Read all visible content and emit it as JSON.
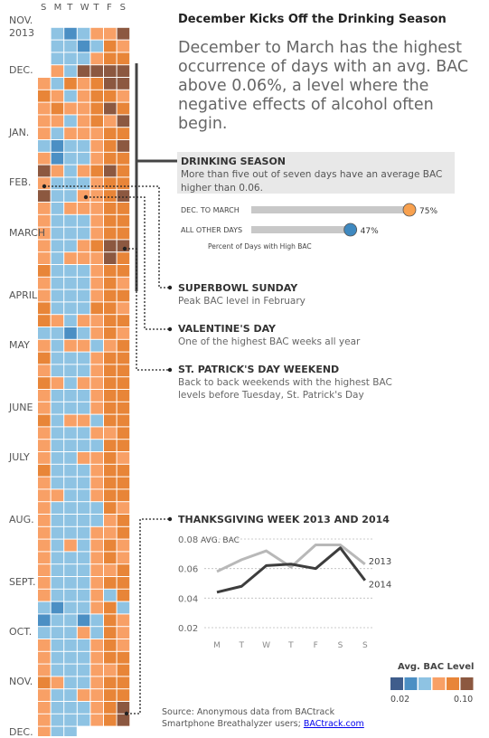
{
  "title": "December Kicks Off the Drinking Season",
  "subtitle": "December to March has the highest occurrence of days with an avg. BAC above 0.06%, a level where the negative effects of alcohol often begin.",
  "calendar": {
    "weekday_headers": [
      "S",
      "M",
      "T",
      "W",
      "T",
      "F",
      "S"
    ],
    "month_labels": [
      {
        "label": "NOV.",
        "row": 0
      },
      {
        "label": "2013",
        "row": 1
      },
      {
        "label": "DEC.",
        "row": 4
      },
      {
        "label": "JAN.",
        "row": 9
      },
      {
        "label": "FEB.",
        "row": 13
      },
      {
        "label": "MARCH",
        "row": 17
      },
      {
        "label": "APRIL",
        "row": 22
      },
      {
        "label": "MAY",
        "row": 26
      },
      {
        "label": "JUNE",
        "row": 31
      },
      {
        "label": "JULY",
        "row": 35
      },
      {
        "label": "AUG.",
        "row": 40
      },
      {
        "label": "SEPT.",
        "row": 45
      },
      {
        "label": "OCT.",
        "row": 49
      },
      {
        "label": "NOV.",
        "row": 53
      },
      {
        "label": "DEC.",
        "row": 57
      }
    ],
    "level_colors": [
      "#3f5d8c",
      "#4b8fc4",
      "#8ec3e3",
      "#f8a066",
      "#e88538",
      "#8c5840"
    ],
    "weeks": [
      [
        null,
        null,
        null,
        null,
        null,
        null,
        null
      ],
      [
        null,
        2,
        1,
        2,
        3,
        3,
        5
      ],
      [
        null,
        2,
        2,
        1,
        2,
        4,
        3
      ],
      [
        null,
        2,
        2,
        2,
        3,
        4,
        4
      ],
      [
        null,
        3,
        2,
        5,
        5,
        5,
        5
      ],
      [
        3,
        2,
        4,
        3,
        4,
        5,
        5
      ],
      [
        4,
        3,
        2,
        3,
        4,
        4,
        3
      ],
      [
        3,
        4,
        3,
        3,
        4,
        5,
        4
      ],
      [
        3,
        3,
        2,
        3,
        4,
        3,
        5
      ],
      [
        3,
        2,
        3,
        3,
        3,
        4,
        4
      ],
      [
        2,
        1,
        2,
        2,
        3,
        4,
        5
      ],
      [
        3,
        1,
        2,
        2,
        3,
        4,
        4
      ],
      [
        5,
        3,
        2,
        3,
        4,
        5,
        4
      ],
      [
        3,
        2,
        2,
        2,
        3,
        4,
        4
      ],
      [
        5,
        2,
        2,
        3,
        3,
        4,
        5
      ],
      [
        3,
        2,
        3,
        3,
        3,
        4,
        4
      ],
      [
        3,
        2,
        2,
        2,
        3,
        4,
        4
      ],
      [
        3,
        2,
        2,
        2,
        3,
        4,
        4
      ],
      [
        3,
        2,
        2,
        3,
        4,
        5,
        5
      ],
      [
        3,
        2,
        3,
        3,
        3,
        5,
        4
      ],
      [
        4,
        2,
        2,
        2,
        3,
        4,
        4
      ],
      [
        3,
        2,
        2,
        2,
        3,
        4,
        3
      ],
      [
        3,
        2,
        2,
        2,
        3,
        4,
        4
      ],
      [
        4,
        2,
        2,
        2,
        4,
        4,
        3
      ],
      [
        4,
        3,
        2,
        3,
        3,
        4,
        4
      ],
      [
        2,
        2,
        1,
        2,
        3,
        4,
        3
      ],
      [
        3,
        2,
        3,
        3,
        2,
        3,
        4
      ],
      [
        4,
        2,
        2,
        2,
        3,
        4,
        4
      ],
      [
        3,
        2,
        2,
        2,
        3,
        4,
        4
      ],
      [
        4,
        3,
        2,
        3,
        3,
        4,
        4
      ],
      [
        3,
        2,
        2,
        2,
        3,
        4,
        4
      ],
      [
        3,
        2,
        2,
        2,
        3,
        4,
        4
      ],
      [
        4,
        2,
        3,
        3,
        2,
        4,
        4
      ],
      [
        3,
        2,
        2,
        2,
        3,
        3,
        4
      ],
      [
        3,
        2,
        2,
        2,
        2,
        4,
        4
      ],
      [
        3,
        2,
        2,
        3,
        3,
        4,
        3
      ],
      [
        4,
        2,
        2,
        2,
        3,
        4,
        4
      ],
      [
        3,
        2,
        2,
        2,
        3,
        4,
        4
      ],
      [
        3,
        3,
        2,
        2,
        3,
        4,
        4
      ],
      [
        3,
        2,
        2,
        2,
        2,
        4,
        3
      ],
      [
        3,
        2,
        2,
        2,
        2,
        3,
        4
      ],
      [
        3,
        2,
        2,
        2,
        3,
        3,
        4
      ],
      [
        3,
        2,
        3,
        2,
        3,
        4,
        3
      ],
      [
        3,
        2,
        2,
        2,
        3,
        4,
        3
      ],
      [
        3,
        2,
        2,
        2,
        3,
        3,
        4
      ],
      [
        3,
        2,
        2,
        2,
        3,
        4,
        4
      ],
      [
        3,
        2,
        2,
        2,
        3,
        2,
        4
      ],
      [
        2,
        1,
        2,
        2,
        3,
        4,
        2
      ],
      [
        1,
        2,
        2,
        1,
        2,
        4,
        3
      ],
      [
        2,
        2,
        2,
        3,
        2,
        4,
        3
      ],
      [
        3,
        2,
        2,
        2,
        3,
        4,
        3
      ],
      [
        3,
        2,
        2,
        2,
        3,
        4,
        4
      ],
      [
        3,
        2,
        2,
        2,
        3,
        3,
        4
      ],
      [
        4,
        3,
        2,
        2,
        3,
        4,
        4
      ],
      [
        3,
        2,
        2,
        3,
        3,
        4,
        4
      ],
      [
        3,
        2,
        2,
        2,
        3,
        4,
        5
      ],
      [
        3,
        2,
        2,
        2,
        3,
        4,
        4
      ],
      [
        3,
        2,
        2,
        null,
        null,
        null,
        null
      ]
    ]
  },
  "drinking_season": {
    "heading": "DRINKING SEASON",
    "body": "More than five out of seven days have an average BAC higher than 0.06.",
    "axis_title": "Percent of Days with High BAC"
  },
  "bar_chart": {
    "type": "bar",
    "categories": [
      "DEC. TO MARCH",
      "ALL OTHER DAYS"
    ],
    "values": [
      75,
      47
    ],
    "value_labels": [
      "75%",
      "47%"
    ],
    "colors": [
      "#f8a14f",
      "#3f89c0"
    ]
  },
  "annotations": [
    {
      "heading": "SUPERBOWL SUNDAY",
      "body": "Peak BAC level in February"
    },
    {
      "heading": "VALENTINE'S DAY",
      "body": "One of the highest BAC weeks all year"
    },
    {
      "heading": "ST. PATRICK'S DAY WEEKEND",
      "body": "Back to back weekends with the highest BAC levels before Tuesday, St. Patrick's Day"
    }
  ],
  "thanksgiving": {
    "heading": "THANKSGIVING WEEK 2013 AND 2014"
  },
  "chart_data": [
    {
      "type": "line",
      "ylabel": "AVG. BAC",
      "x": [
        "M",
        "T",
        "W",
        "T",
        "F",
        "S",
        "S"
      ],
      "y_ticks": [
        "0.08",
        "0.06",
        "0.04",
        "0.02"
      ],
      "ylim": [
        0.02,
        0.08
      ],
      "grid": "horizontal dotted",
      "series": [
        {
          "name": "2013",
          "color": "#b8b8b8",
          "values": [
            0.058,
            0.066,
            0.072,
            0.061,
            0.076,
            0.076,
            0.063
          ]
        },
        {
          "name": "2014",
          "color": "#3d3d3d",
          "values": [
            0.044,
            0.048,
            0.062,
            0.063,
            0.06,
            0.074,
            0.052
          ]
        }
      ]
    }
  ],
  "legend": {
    "title": "Avg. BAC Level",
    "min_label": "0.02",
    "max_label": "0.10"
  },
  "source": {
    "line1": "Source: Anonymous data from BACtrack",
    "line2": "Smartphone Breathalyzer users; ",
    "link": "BACtrack.com"
  }
}
